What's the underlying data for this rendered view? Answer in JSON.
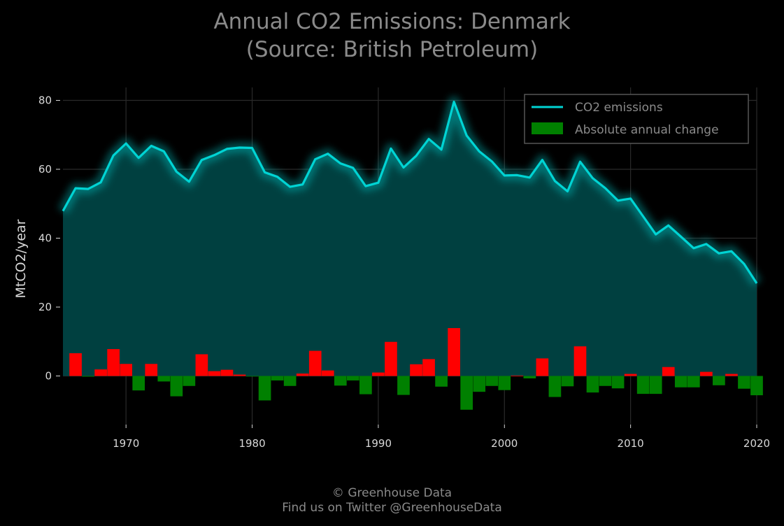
{
  "chart_data": {
    "type": "line",
    "title": "Annual CO2 Emissions: Denmark",
    "subtitle": "(Source: British Petroleum)",
    "ylabel": "MtCO2/year",
    "xlabel": "",
    "xlim": [
      1965,
      2020
    ],
    "ylim": [
      -10,
      80
    ],
    "x_ticks": [
      "1970",
      "1980",
      "1990",
      "2000",
      "2010",
      "2020"
    ],
    "y_ticks": [
      "0",
      "20",
      "40",
      "60",
      "80"
    ],
    "grid": true,
    "legend_position": "top-right",
    "legend": [
      "CO2 emissions",
      "Absolute annual change"
    ],
    "x": [
      1965,
      1966,
      1967,
      1968,
      1969,
      1970,
      1971,
      1972,
      1973,
      1974,
      1975,
      1976,
      1977,
      1978,
      1979,
      1980,
      1981,
      1982,
      1983,
      1984,
      1985,
      1986,
      1987,
      1988,
      1989,
      1990,
      1991,
      1992,
      1993,
      1994,
      1995,
      1996,
      1997,
      1998,
      1999,
      2000,
      2001,
      2002,
      2003,
      2004,
      2005,
      2006,
      2007,
      2008,
      2009,
      2010,
      2011,
      2012,
      2013,
      2014,
      2015,
      2016,
      2017,
      2018,
      2019,
      2020
    ],
    "series": [
      {
        "name": "CO2 emissions",
        "kind": "line",
        "color": "#00d4d4",
        "values": [
          47.9,
          54.5,
          54.3,
          56.2,
          64.0,
          67.5,
          63.3,
          66.8,
          65.2,
          59.3,
          56.4,
          62.7,
          64.1,
          65.9,
          66.3,
          66.2,
          59.1,
          57.8,
          54.9,
          55.6,
          62.9,
          64.5,
          61.7,
          60.4,
          55.1,
          56.1,
          66.0,
          60.5,
          63.9,
          68.8,
          65.7,
          79.6,
          69.8,
          65.2,
          62.3,
          58.2,
          58.3,
          57.6,
          62.7,
          56.6,
          53.6,
          62.2,
          57.4,
          54.5,
          50.9,
          51.5,
          46.3,
          41.1,
          43.7,
          40.4,
          37.1,
          38.3,
          35.6,
          36.2,
          32.5,
          26.9
        ]
      },
      {
        "name": "Absolute annual change",
        "kind": "bar",
        "positive_color": "#ff0000",
        "negative_color": "#008000",
        "values": [
          null,
          6.6,
          -0.2,
          1.9,
          7.8,
          3.5,
          -4.2,
          3.5,
          -1.6,
          -5.9,
          -2.9,
          6.3,
          1.4,
          1.8,
          0.4,
          -0.1,
          -7.1,
          -1.3,
          -2.9,
          0.7,
          7.3,
          1.6,
          -2.8,
          -1.3,
          -5.3,
          1.0,
          9.9,
          -5.5,
          3.4,
          4.9,
          -3.1,
          13.9,
          -9.8,
          -4.6,
          -2.9,
          -4.1,
          0.1,
          -0.7,
          5.1,
          -6.1,
          -3.0,
          8.6,
          -4.8,
          -2.9,
          -3.6,
          0.6,
          -5.2,
          -5.2,
          2.6,
          -3.3,
          -3.3,
          1.2,
          -2.7,
          0.6,
          -3.7,
          -5.6
        ]
      }
    ]
  },
  "colors": {
    "background": "#000000",
    "area_fill": "#004040",
    "grid": "#2a2a2a",
    "text": "#d8d8d8",
    "title_text": "#8a8a8a"
  },
  "footer": {
    "credit": "© Greenhouse Data",
    "twitter": "Find us on Twitter @GreenhouseData"
  }
}
